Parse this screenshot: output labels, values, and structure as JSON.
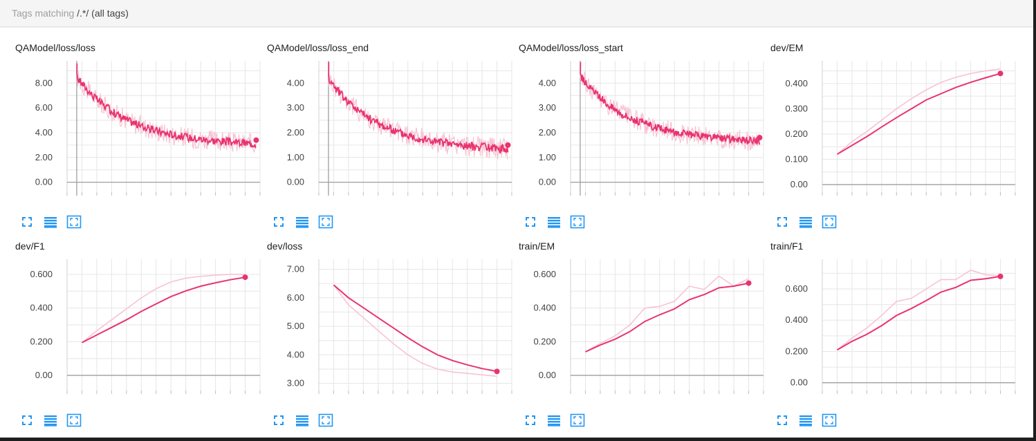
{
  "header": {
    "prefix": "Tags matching ",
    "query": "/.*/",
    "suffix": " (all tags)"
  },
  "colors": {
    "accent": "#e8336e",
    "smoothed": "#e8336e",
    "raw": "#f7c3d4",
    "icon": "#2196f3"
  },
  "controls": [
    "fullscreen-icon",
    "data-table-icon",
    "fit-domain-icon"
  ],
  "chart_data": [
    {
      "title": "QAModel/loss/loss",
      "type": "line",
      "ylim": [
        -0.8,
        9.8
      ],
      "yticks": [
        "8.00",
        "6.00",
        "4.00",
        "2.00",
        "0.00"
      ],
      "ytick_values": [
        8,
        6,
        4,
        2,
        0
      ],
      "xlim": [
        0,
        100
      ],
      "zero_x": 5,
      "series": [
        {
          "noisy": true,
          "spike_y": 9.6,
          "start": 8.5,
          "end": 3.4,
          "curve": 2.4
        }
      ]
    },
    {
      "title": "QAModel/loss/loss_end",
      "type": "line",
      "ylim": [
        -0.4,
        4.9
      ],
      "yticks": [
        "4.00",
        "3.00",
        "2.00",
        "1.00",
        "0.00"
      ],
      "ytick_values": [
        4,
        3,
        2,
        1,
        0
      ],
      "xlim": [
        0,
        100
      ],
      "zero_x": 5,
      "series": [
        {
          "noisy": true,
          "spike_y": 4.85,
          "start": 4.2,
          "end": 1.5,
          "curve": 2.4
        }
      ]
    },
    {
      "title": "QAModel/loss/loss_start",
      "type": "line",
      "ylim": [
        -0.4,
        4.9
      ],
      "yticks": [
        "4.00",
        "3.00",
        "2.00",
        "1.00",
        "0.00"
      ],
      "ytick_values": [
        4,
        3,
        2,
        1,
        0
      ],
      "xlim": [
        0,
        100
      ],
      "zero_x": 5,
      "series": [
        {
          "noisy": true,
          "spike_y": 4.85,
          "start": 4.3,
          "end": 1.8,
          "curve": 2.4
        }
      ]
    },
    {
      "title": "dev/EM",
      "type": "line",
      "ylim": [
        -0.03,
        0.49
      ],
      "yticks": [
        "0.400",
        "0.300",
        "0.200",
        "0.100",
        "0.00"
      ],
      "ytick_values": [
        0.4,
        0.3,
        0.2,
        0.1,
        0
      ],
      "x": [
        1,
        2,
        3,
        4,
        5,
        6,
        7,
        8,
        9,
        10,
        11,
        12
      ],
      "xlim": [
        0,
        13
      ],
      "raw": [
        0.12,
        0.17,
        0.21,
        0.255,
        0.3,
        0.34,
        0.375,
        0.405,
        0.425,
        0.44,
        0.45,
        0.458
      ],
      "smoothed": [
        0.12,
        0.155,
        0.19,
        0.228,
        0.265,
        0.3,
        0.335,
        0.36,
        0.385,
        0.405,
        0.423,
        0.44
      ]
    },
    {
      "title": "dev/F1",
      "type": "line",
      "ylim": [
        -0.09,
        0.69
      ],
      "yticks": [
        "0.600",
        "0.400",
        "0.200",
        "0.00"
      ],
      "ytick_values": [
        0.6,
        0.4,
        0.2,
        0
      ],
      "x": [
        1,
        2,
        3,
        4,
        5,
        6,
        7,
        8,
        9,
        10,
        11,
        12
      ],
      "xlim": [
        0,
        13
      ],
      "raw": [
        0.195,
        0.265,
        0.33,
        0.395,
        0.46,
        0.515,
        0.555,
        0.578,
        0.588,
        0.595,
        0.6,
        0.6
      ],
      "smoothed": [
        0.195,
        0.24,
        0.285,
        0.33,
        0.38,
        0.425,
        0.468,
        0.502,
        0.53,
        0.55,
        0.568,
        0.583
      ]
    },
    {
      "title": "dev/loss",
      "type": "line",
      "ylim": [
        2.75,
        7.35
      ],
      "yticks": [
        "7.00",
        "6.00",
        "5.00",
        "4.00",
        "3.00"
      ],
      "ytick_values": [
        7,
        6,
        5,
        4,
        3
      ],
      "x": [
        1,
        2,
        3,
        4,
        5,
        6,
        7,
        8,
        9,
        10,
        11,
        12
      ],
      "xlim": [
        0,
        13
      ],
      "raw": [
        6.45,
        5.75,
        5.3,
        4.85,
        4.4,
        4.0,
        3.7,
        3.5,
        3.4,
        3.35,
        3.3,
        3.25
      ],
      "smoothed": [
        6.45,
        6.0,
        5.65,
        5.3,
        4.95,
        4.6,
        4.28,
        4.0,
        3.8,
        3.65,
        3.52,
        3.42
      ]
    },
    {
      "title": "train/EM",
      "type": "line",
      "ylim": [
        -0.09,
        0.69
      ],
      "yticks": [
        "0.600",
        "0.400",
        "0.200",
        "0.00"
      ],
      "ytick_values": [
        0.6,
        0.4,
        0.2,
        0
      ],
      "x": [
        1,
        2,
        3,
        4,
        5,
        6,
        7,
        8,
        9,
        10,
        11,
        12
      ],
      "xlim": [
        0,
        13
      ],
      "raw": [
        0.14,
        0.19,
        0.235,
        0.3,
        0.4,
        0.41,
        0.44,
        0.53,
        0.51,
        0.59,
        0.53,
        0.575
      ],
      "smoothed": [
        0.14,
        0.18,
        0.215,
        0.26,
        0.32,
        0.36,
        0.395,
        0.45,
        0.48,
        0.52,
        0.53,
        0.548
      ]
    },
    {
      "title": "train/F1",
      "type": "line",
      "ylim": [
        -0.05,
        0.79
      ],
      "yticks": [
        "0.600",
        "0.400",
        "0.200",
        "0.00"
      ],
      "ytick_values": [
        0.6,
        0.4,
        0.2,
        0
      ],
      "x": [
        1,
        2,
        3,
        4,
        5,
        6,
        7,
        8,
        9,
        10,
        11,
        12
      ],
      "xlim": [
        0,
        13
      ],
      "raw": [
        0.21,
        0.285,
        0.35,
        0.43,
        0.52,
        0.54,
        0.6,
        0.66,
        0.66,
        0.72,
        0.69,
        0.685
      ],
      "smoothed": [
        0.21,
        0.265,
        0.31,
        0.365,
        0.43,
        0.475,
        0.525,
        0.58,
        0.61,
        0.655,
        0.665,
        0.68
      ]
    }
  ]
}
